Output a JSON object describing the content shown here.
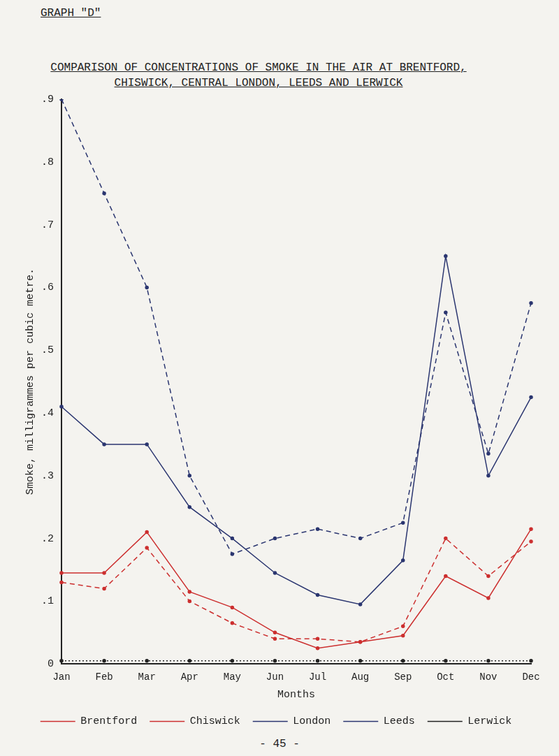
{
  "page": {
    "header": "GRAPH \"D\"",
    "footer": "- 45 -"
  },
  "chart_data": {
    "type": "line",
    "title": "COMPARISON OF CONCENTRATIONS OF SMOKE IN THE AIR AT BRENTFORD, CHISWICK, CENTRAL LONDON, LEEDS AND LERWICK",
    "x_label": "Months",
    "y_label": "Smoke, milligrammes per cubic metre.",
    "categories": [
      "Jan",
      "Feb",
      "Mar",
      "Apr",
      "May",
      "Jun",
      "Jul",
      "Aug",
      "Sep",
      "Oct",
      "Nov",
      "Dec"
    ],
    "series": [
      {
        "name": "Brentford",
        "color": "#cc2f2f",
        "line_style": "solid",
        "marker": "circle",
        "values": [
          0.145,
          0.145,
          0.21,
          0.115,
          0.09,
          0.05,
          0.025,
          0.035,
          0.045,
          0.14,
          0.105,
          0.215
        ]
      },
      {
        "name": "Chiswick",
        "color": "#cc2f2f",
        "line_style": "dashed",
        "marker": "circle",
        "values": [
          0.13,
          0.12,
          0.185,
          0.1,
          0.065,
          0.04,
          0.04,
          0.035,
          0.06,
          0.2,
          0.14,
          0.195
        ]
      },
      {
        "name": "London",
        "color": "#2b3670",
        "line_style": "solid",
        "marker": "circle",
        "values": [
          0.41,
          0.35,
          0.35,
          0.25,
          0.2,
          0.145,
          0.11,
          0.095,
          0.165,
          0.65,
          0.3,
          0.425
        ]
      },
      {
        "name": "Leeds",
        "color": "#2b3670",
        "line_style": "dashed",
        "marker": "circle",
        "values": [
          0.9,
          0.75,
          0.6,
          0.3,
          0.175,
          0.2,
          0.215,
          0.2,
          0.225,
          0.56,
          0.335,
          0.575
        ]
      },
      {
        "name": "Lerwick",
        "color": "#222222",
        "line_style": "dotted",
        "marker": "circle",
        "values": [
          0.005,
          0.005,
          0.005,
          0.005,
          0.005,
          0.005,
          0.005,
          0.005,
          0.005,
          0.005,
          0.005,
          0.005
        ]
      }
    ],
    "ylim": [
      0,
      0.9
    ],
    "yticks": [
      0,
      {
        "value": 0.1,
        "label": ".1"
      },
      {
        "value": 0.2,
        "label": ".2"
      },
      {
        "value": 0.3,
        "label": ".3"
      },
      {
        "value": 0.4,
        "label": ".4"
      },
      {
        "value": 0.5,
        "label": ".5"
      },
      {
        "value": 0.6,
        "label": ".6"
      },
      {
        "value": 0.7,
        "label": ".7"
      },
      {
        "value": 0.8,
        "label": ".8"
      },
      {
        "value": 0.9,
        "label": ".9"
      }
    ],
    "grid": false,
    "legend": "bottom"
  }
}
